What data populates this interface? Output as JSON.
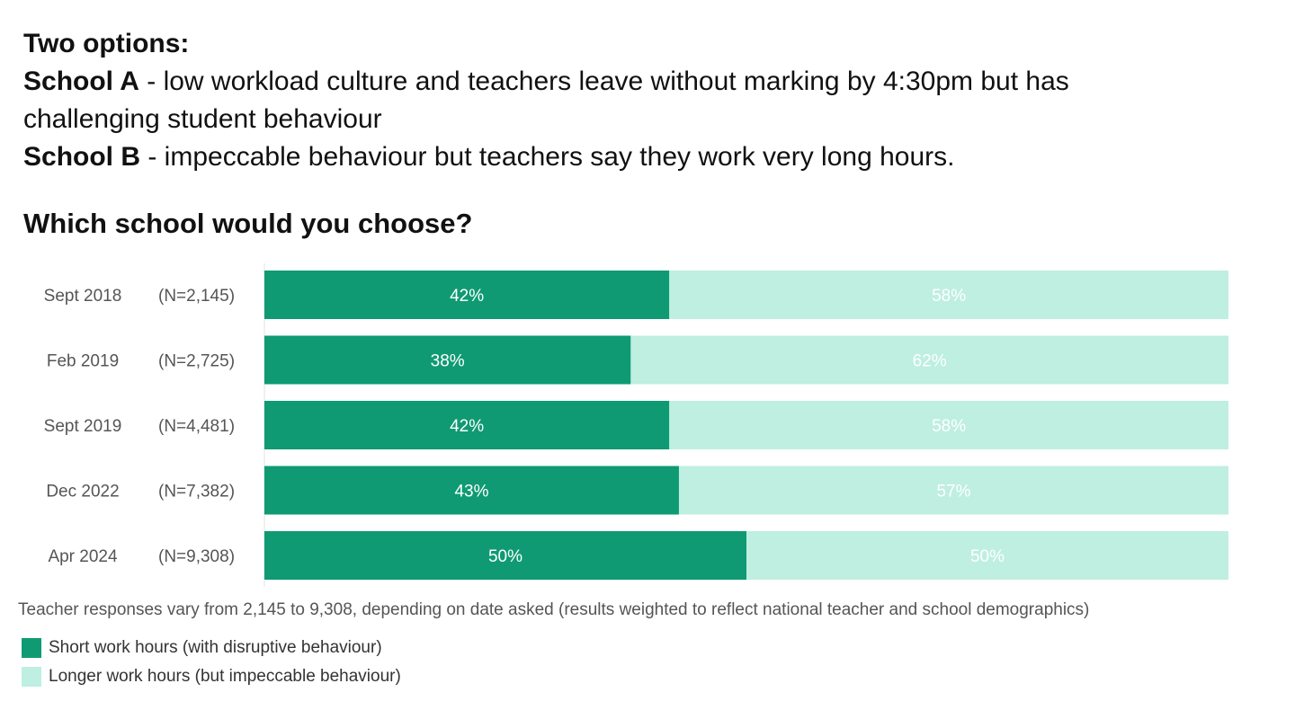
{
  "intro": {
    "heading": "Two options:",
    "option_a_label": "School A",
    "option_a_text": " - low workload culture and teachers leave without marking by 4:30pm but has",
    "option_a_text_cont": "challenging student behaviour",
    "option_b_label": "School B",
    "option_b_text": " - impeccable behaviour but teachers say they work very long hours."
  },
  "question": "Which school would you choose?",
  "footnote": "Teacher responses vary from 2,145 to 9,308, depending on date asked (results weighted to reflect national teacher and school demographics)",
  "colors": {
    "short_hours": "#0f9a73",
    "longer_hours": "#beefe0"
  },
  "chart_data": {
    "type": "bar",
    "orientation": "horizontal",
    "stacked": true,
    "percent": true,
    "categories": [
      "Sept 2018",
      "Feb 2019",
      "Sept 2019",
      "Dec 2022",
      "Apr 2024"
    ],
    "sample_sizes": [
      "(N=2,145)",
      "(N=2,725)",
      "(N=4,481)",
      "(N=7,382)",
      "(N=9,308)"
    ],
    "series": [
      {
        "name": "Short work hours (with disruptive behaviour)",
        "values": [
          42,
          38,
          42,
          43,
          50
        ],
        "labels": [
          "42%",
          "38%",
          "42%",
          "43%",
          "50%"
        ]
      },
      {
        "name": "Longer work hours (but impeccable behaviour)",
        "values": [
          58,
          62,
          58,
          57,
          50
        ],
        "labels": [
          "58%",
          "62%",
          "58%",
          "57%",
          "50%"
        ]
      }
    ],
    "xlim": [
      0,
      100
    ],
    "legend_position": "bottom-left",
    "grid": false
  }
}
